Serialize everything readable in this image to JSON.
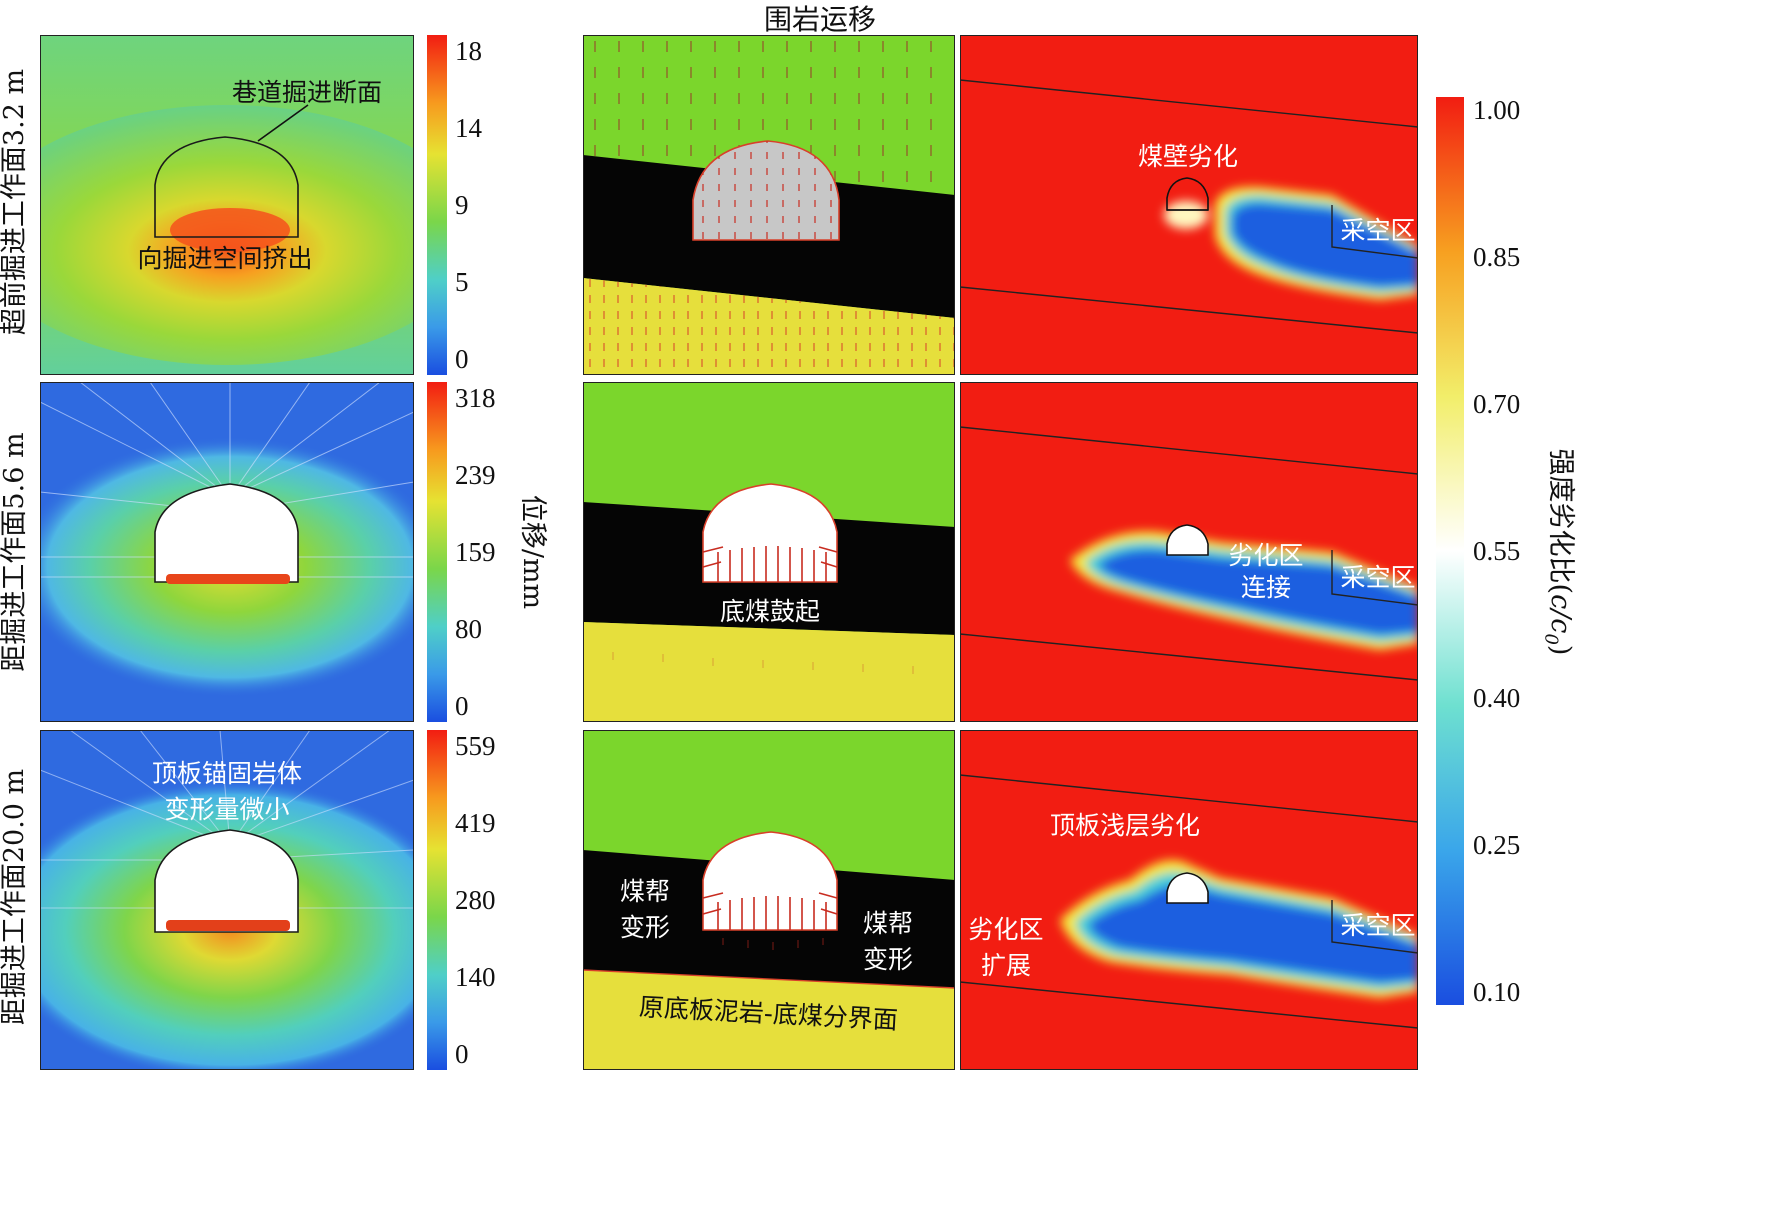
{
  "top_caption": "围岩运移",
  "rows": [
    {
      "label": "超前掘进工作面3.2 m"
    },
    {
      "label": "距掘进工作面5.6 m"
    },
    {
      "label": "距掘进工作面20.0 m"
    }
  ],
  "displacement_axis_label": "位移/mm",
  "colorbars": [
    {
      "ticks": [
        "18",
        "14",
        "9",
        "5",
        "0"
      ]
    },
    {
      "ticks": [
        "318",
        "239",
        "159",
        "80",
        "0"
      ]
    },
    {
      "ticks": [
        "559",
        "419",
        "280",
        "140",
        "0"
      ]
    }
  ],
  "strength_colorbar": {
    "label": "强度劣化比(c/c0)",
    "label_main": "强度劣化比(",
    "label_var": "c/c",
    "label_sub": "0",
    "label_end": ")",
    "ticks": [
      "1.00",
      "0.85",
      "0.70",
      "0.55",
      "0.40",
      "0.25",
      "0.10"
    ]
  },
  "annotations": {
    "r1_section": "巷道掘进断面",
    "r1_extrude": "向掘进空间挤出",
    "r3_roof_l1": "顶板锚固岩体",
    "r3_roof_l2": "变形量微小",
    "r2_floor_heave": "底煤鼓起",
    "r3_rib_left_l1": "煤帮",
    "r3_rib_left_l2": "变形",
    "r3_rib_right_l1": "煤帮",
    "r3_rib_right_l2": "变形",
    "r3_interface": "原底板泥岩-底煤分界面",
    "r1_coal_wall": "煤壁劣化",
    "goaf": "采空区",
    "r2_connect_l1": "劣化区",
    "r2_connect_l2": "连接",
    "r3_shallow_roof": "顶板浅层劣化",
    "r3_expand_l1": "劣化区",
    "r3_expand_l2": "扩展"
  },
  "colors": {
    "deg_red": "#f21d12",
    "deg_blue": "#1a5ee0",
    "green_layer": "#7bd62c",
    "coal_black": "#050505",
    "yellow_floor": "#e6df3c"
  }
}
